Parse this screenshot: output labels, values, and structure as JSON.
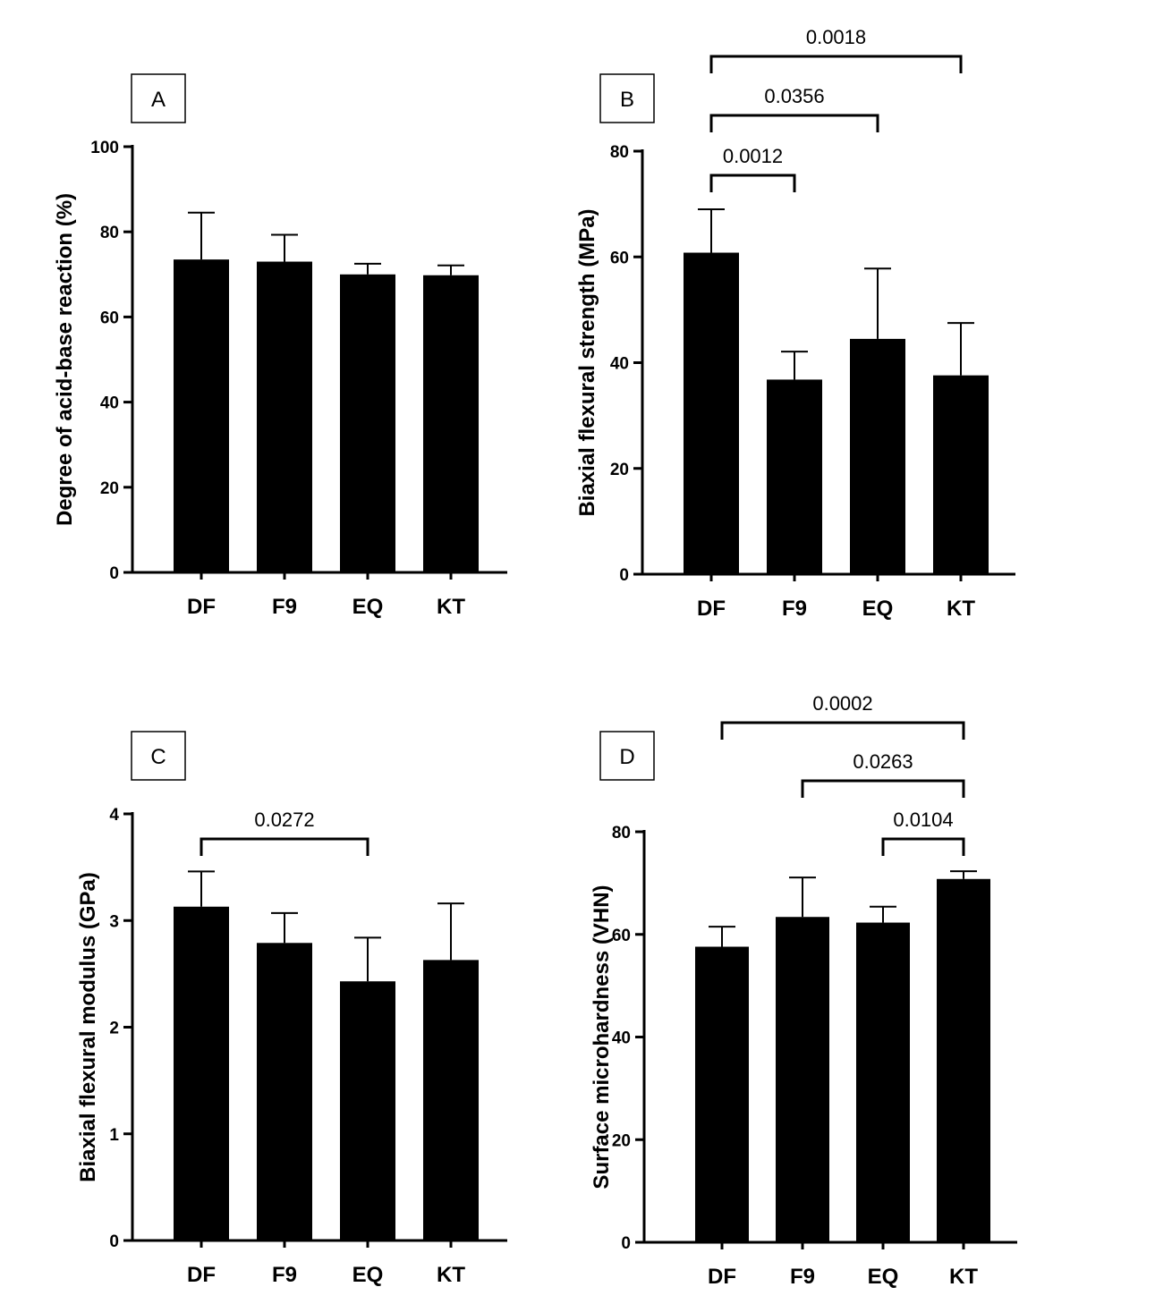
{
  "chart_data": [
    {
      "type": "bar",
      "panel": "A",
      "categories": [
        "DF",
        "F9",
        "EQ",
        "KT"
      ],
      "values": [
        73.5,
        73.0,
        70.0,
        69.8
      ],
      "errors": [
        11.0,
        6.3,
        2.5,
        2.3
      ],
      "ylabel": "Degree of acid-base reaction (%)",
      "ylim": [
        0,
        100
      ],
      "yticks": [
        0,
        20,
        40,
        60,
        80,
        100
      ],
      "brackets": []
    },
    {
      "type": "bar",
      "panel": "B",
      "categories": [
        "DF",
        "F9",
        "EQ",
        "KT"
      ],
      "values": [
        60.8,
        36.8,
        44.5,
        37.6
      ],
      "errors": [
        8.2,
        5.3,
        13.3,
        9.9
      ],
      "ylabel": "Biaxial flexural strength (MPa)",
      "ylim": [
        0,
        80
      ],
      "yticks": [
        0,
        20,
        40,
        60,
        80
      ],
      "brackets": [
        {
          "from": "DF",
          "to": "F9",
          "label": "0.0012"
        },
        {
          "from": "DF",
          "to": "EQ",
          "label": "0.0356"
        },
        {
          "from": "DF",
          "to": "KT",
          "label": "0.0018"
        }
      ]
    },
    {
      "type": "bar",
      "panel": "C",
      "categories": [
        "DF",
        "F9",
        "EQ",
        "KT"
      ],
      "values": [
        3.13,
        2.79,
        2.43,
        2.63
      ],
      "errors": [
        0.33,
        0.28,
        0.41,
        0.53
      ],
      "ylabel": "Biaxial flexural modulus (GPa)",
      "ylim": [
        0,
        4
      ],
      "yticks": [
        0,
        1,
        2,
        3,
        4
      ],
      "brackets": [
        {
          "from": "DF",
          "to": "EQ",
          "label": "0.0272"
        }
      ]
    },
    {
      "type": "bar",
      "panel": "D",
      "categories": [
        "DF",
        "F9",
        "EQ",
        "KT"
      ],
      "values": [
        57.6,
        63.4,
        62.3,
        70.8
      ],
      "errors": [
        3.9,
        7.7,
        3.1,
        1.5
      ],
      "ylabel": "Surface microhardness (VHN)",
      "ylim": [
        0,
        80
      ],
      "yticks": [
        0,
        20,
        40,
        60,
        80
      ],
      "brackets": [
        {
          "from": "EQ",
          "to": "KT",
          "label": "0.0104"
        },
        {
          "from": "F9",
          "to": "KT",
          "label": "0.0263"
        },
        {
          "from": "DF",
          "to": "KT",
          "label": "0.0002"
        }
      ]
    }
  ]
}
